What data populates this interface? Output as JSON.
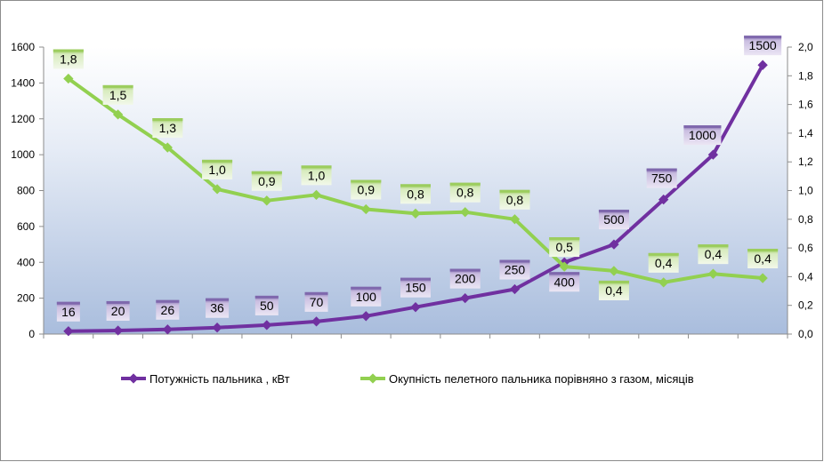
{
  "chart_data": {
    "type": "line",
    "left_axis": {
      "ylim": [
        0,
        1600
      ],
      "ticks": [
        "0",
        "200",
        "400",
        "600",
        "800",
        "1000",
        "1200",
        "1400",
        "1600"
      ]
    },
    "right_axis": {
      "ylim": [
        0,
        2.0
      ],
      "ticks": [
        "0,0",
        "0,2",
        "0,4",
        "0,6",
        "0,8",
        "1,0",
        "1,2",
        "1,4",
        "1,6",
        "1,8",
        "2,0"
      ]
    },
    "points": 15,
    "series": [
      {
        "name": "Потужність пальника , кВт",
        "axis": "left",
        "color": "#7030a0",
        "values": [
          16,
          20,
          26,
          36,
          50,
          70,
          100,
          150,
          200,
          250,
          400,
          500,
          750,
          1000,
          1500
        ],
        "labels": [
          "16",
          "20",
          "26",
          "36",
          "50",
          "70",
          "100",
          "150",
          "200",
          "250",
          "400",
          "500",
          "750",
          "1000",
          "1500"
        ]
      },
      {
        "name": "Окупність пелетного пальника порівняно з газом, місяців",
        "axis": "right",
        "color": "#92d050",
        "values": [
          1.78,
          1.53,
          1.3,
          1.01,
          0.93,
          0.97,
          0.87,
          0.84,
          0.85,
          0.8,
          0.47,
          0.44,
          0.36,
          0.42,
          0.39
        ],
        "labels": [
          "1,8",
          "1,5",
          "1,3",
          "1,0",
          "0,9",
          "1,0",
          "0,9",
          "0,8",
          "0,8",
          "0,8",
          "0,5",
          "0,4",
          "0,4",
          "0,4",
          "0,4"
        ]
      }
    ],
    "grid": false,
    "legend": "bottom"
  }
}
